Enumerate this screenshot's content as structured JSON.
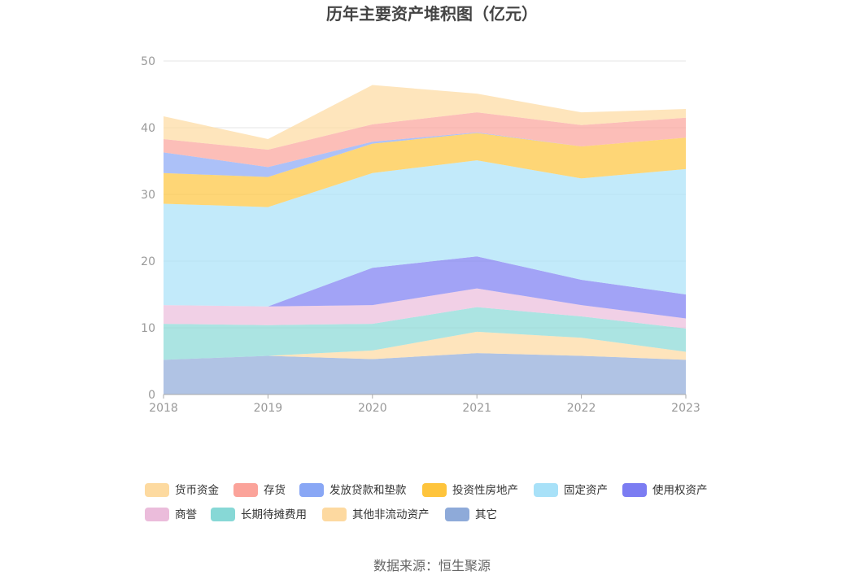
{
  "chart_data": {
    "type": "area",
    "stacked": true,
    "title": "历年主要资产堆积图（亿元）",
    "source": "数据来源：恒生聚源",
    "x": [
      "2018",
      "2019",
      "2020",
      "2021",
      "2022",
      "2023"
    ],
    "ylim": [
      0,
      50
    ],
    "yticks": [
      "0",
      "10",
      "20",
      "30",
      "40",
      "50"
    ],
    "grid": true,
    "legend_position": "bottom",
    "series": [
      {
        "name": "其它",
        "color": "#8eaad9",
        "values": [
          5.2,
          5.8,
          5.3,
          6.2,
          5.8,
          5.2
        ]
      },
      {
        "name": "其他非流动资产",
        "color": "#fdd9a0",
        "values": [
          0.0,
          0.0,
          1.3,
          3.2,
          2.7,
          1.2
        ]
      },
      {
        "name": "长期待摊费用",
        "color": "#87d8d6",
        "values": [
          5.4,
          4.6,
          4.0,
          3.7,
          3.2,
          3.5
        ]
      },
      {
        "name": "商誉",
        "color": "#ebbcdb",
        "values": [
          2.8,
          2.8,
          2.8,
          2.8,
          1.7,
          1.5
        ]
      },
      {
        "name": "使用权资产",
        "color": "#7b7cf2",
        "values": [
          0.0,
          0.0,
          5.6,
          4.8,
          3.8,
          3.6
        ]
      },
      {
        "name": "固定资产",
        "color": "#a8e1f8",
        "values": [
          15.2,
          14.9,
          14.2,
          14.4,
          15.2,
          18.8
        ]
      },
      {
        "name": "投资性房地产",
        "color": "#fec43c",
        "values": [
          4.6,
          4.5,
          4.4,
          4.1,
          4.8,
          4.7
        ]
      },
      {
        "name": "发放贷款和垫款",
        "color": "#89a7f5",
        "values": [
          3.1,
          1.5,
          0.3,
          0.1,
          0.0,
          0.0
        ]
      },
      {
        "name": "存货",
        "color": "#fba39a",
        "values": [
          2.0,
          2.6,
          2.6,
          3.0,
          3.2,
          3.0
        ]
      },
      {
        "name": "货币资金",
        "color": "#fddaa0",
        "values": [
          3.4,
          1.6,
          5.9,
          2.8,
          1.9,
          1.3
        ]
      }
    ],
    "legend_order": [
      "货币资金",
      "存货",
      "发放贷款和垫款",
      "投资性房地产",
      "固定资产",
      "使用权资产",
      "商誉",
      "长期待摊费用",
      "其他非流动资产",
      "其它"
    ]
  }
}
